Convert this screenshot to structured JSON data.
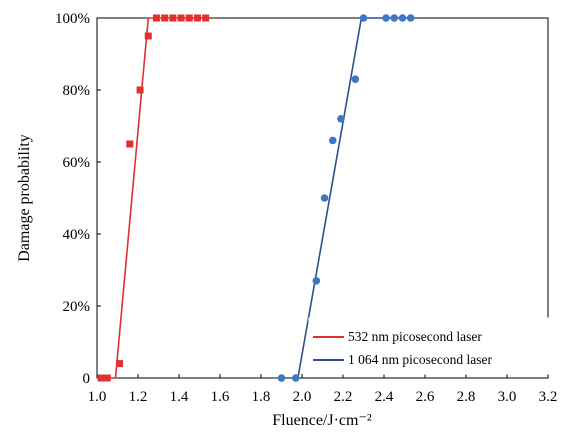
{
  "chart_data": {
    "type": "scatter",
    "xlabel": "Fluence/J·cm⁻²",
    "ylabel": "Damage probability",
    "xlim": [
      1.0,
      3.2
    ],
    "ylim": [
      0,
      100
    ],
    "x_ticks": [
      "1.0",
      "1.2",
      "1.4",
      "1.6",
      "1.8",
      "2.0",
      "2.2",
      "2.4",
      "2.6",
      "2.8",
      "3.0",
      "3.2"
    ],
    "x_tick_values": [
      1.0,
      1.2,
      1.4,
      1.6,
      1.8,
      2.0,
      2.2,
      2.4,
      2.6,
      2.8,
      3.0,
      3.2
    ],
    "y_ticks": [
      "0",
      "20%",
      "40%",
      "60%",
      "80%",
      "100%"
    ],
    "y_tick_values": [
      0,
      20,
      40,
      60,
      80,
      100
    ],
    "legend_position": "bottom-right",
    "series": [
      {
        "name": "532 nm picosecond laser",
        "color": "#e0302f",
        "marker": "square",
        "points": [
          {
            "x": 1.02,
            "y": 0
          },
          {
            "x": 1.05,
            "y": 0
          },
          {
            "x": 1.11,
            "y": 4
          },
          {
            "x": 1.16,
            "y": 65
          },
          {
            "x": 1.21,
            "y": 80
          },
          {
            "x": 1.25,
            "y": 95
          },
          {
            "x": 1.29,
            "y": 100
          },
          {
            "x": 1.33,
            "y": 100
          },
          {
            "x": 1.37,
            "y": 100
          },
          {
            "x": 1.41,
            "y": 100
          },
          {
            "x": 1.45,
            "y": 100
          },
          {
            "x": 1.49,
            "y": 100
          },
          {
            "x": 1.53,
            "y": 100
          }
        ],
        "fit_line": [
          {
            "x": 1.0,
            "y": 0
          },
          {
            "x": 1.09,
            "y": 0
          },
          {
            "x": 1.25,
            "y": 100
          },
          {
            "x": 1.55,
            "y": 100
          }
        ]
      },
      {
        "name": "1 064 nm picosecond laser",
        "color": "#2f4f8f",
        "marker_color": "#3b78c2",
        "marker": "circle",
        "points": [
          {
            "x": 1.9,
            "y": 0
          },
          {
            "x": 1.97,
            "y": 0
          },
          {
            "x": 2.07,
            "y": 27
          },
          {
            "x": 2.11,
            "y": 50
          },
          {
            "x": 2.15,
            "y": 66
          },
          {
            "x": 2.19,
            "y": 72
          },
          {
            "x": 2.26,
            "y": 83
          },
          {
            "x": 2.3,
            "y": 100
          },
          {
            "x": 2.41,
            "y": 100
          },
          {
            "x": 2.45,
            "y": 100
          },
          {
            "x": 2.49,
            "y": 100
          },
          {
            "x": 2.53,
            "y": 100
          }
        ],
        "fit_line": [
          {
            "x": 1.98,
            "y": 0
          },
          {
            "x": 2.29,
            "y": 100
          },
          {
            "x": 2.56,
            "y": 100
          }
        ]
      }
    ]
  }
}
